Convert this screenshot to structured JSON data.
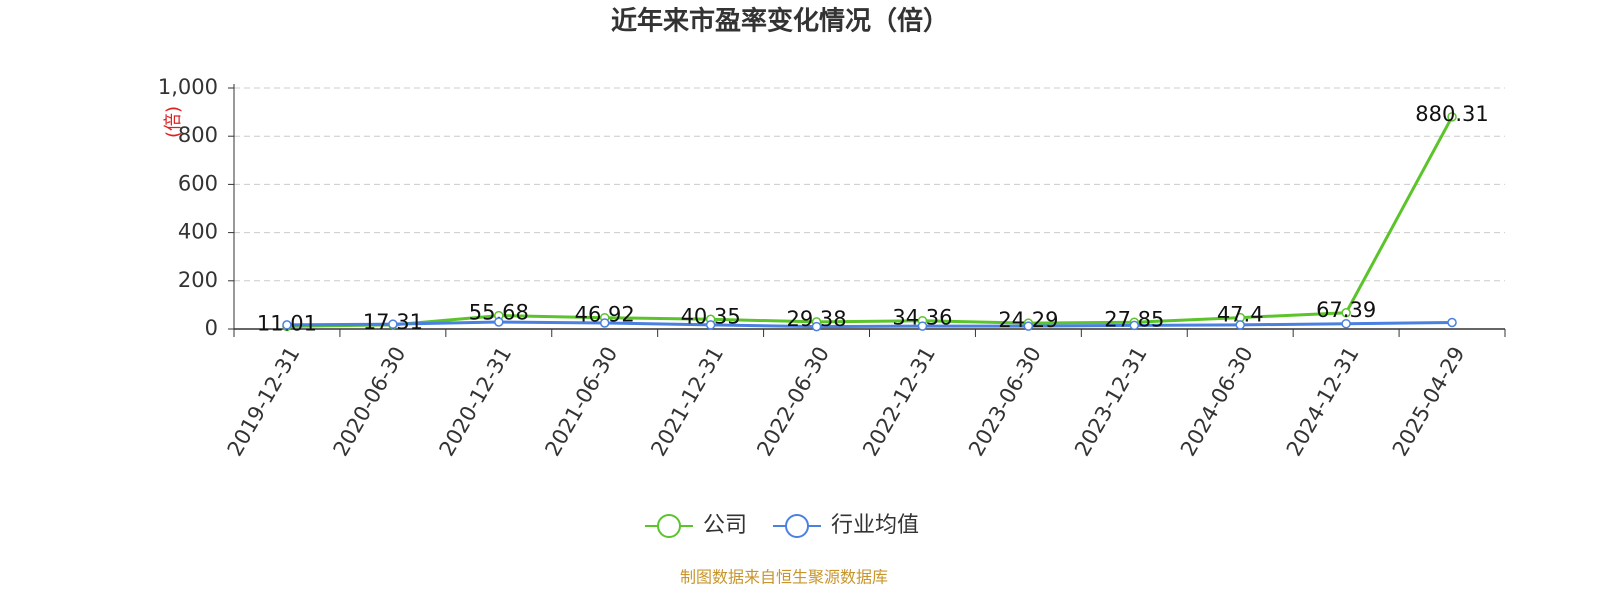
{
  "chart_data": {
    "type": "line",
    "title": "近年来市盈率变化情况（倍）",
    "y_label": "(倍)",
    "categories": [
      "2019-12-31",
      "2020-06-30",
      "2020-12-31",
      "2021-06-30",
      "2021-12-31",
      "2022-06-30",
      "2022-12-31",
      "2023-06-30",
      "2023-12-31",
      "2024-06-30",
      "2024-12-31",
      "2025-04-29"
    ],
    "series": [
      {
        "name": "公司",
        "color": "#5bc42b",
        "values": [
          11.01,
          17.31,
          55.68,
          46.92,
          40.35,
          29.38,
          34.36,
          24.29,
          27.85,
          47.4,
          67.39,
          880.31
        ],
        "show_labels": true
      },
      {
        "name": "行业均值",
        "color": "#4a80e0",
        "values": [
          17,
          20,
          29,
          25,
          17,
          10,
          12,
          12,
          15,
          17,
          22,
          27
        ],
        "show_labels": false
      }
    ],
    "ylim": [
      0,
      1000
    ],
    "yticks": [
      0,
      200,
      400,
      600,
      800,
      {
        "value": 1000,
        "label": "1,000"
      }
    ],
    "grid": true,
    "source": "制图数据来自恒生聚源数据库"
  }
}
